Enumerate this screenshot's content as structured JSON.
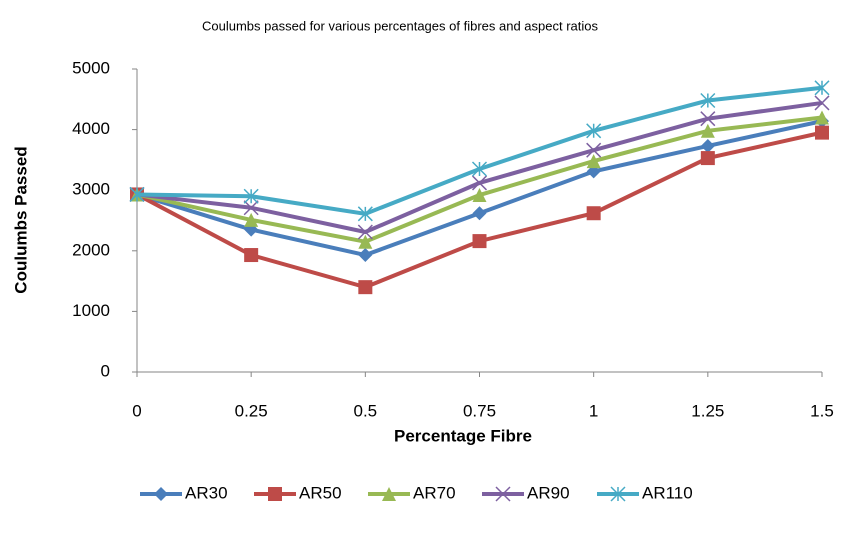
{
  "chart_data": {
    "type": "line",
    "title": "Coulumbs passed for various percentages of fibres and aspect ratios",
    "x_label": "Percentage Fibre",
    "y_label": "Coulumbs Passed",
    "x": [
      0,
      0.25,
      0.5,
      0.75,
      1,
      1.25,
      1.5
    ],
    "xlim": [
      0,
      1.5
    ],
    "xticks": [
      0,
      0.25,
      0.5,
      0.75,
      1,
      1.25,
      1.5
    ],
    "ylim": [
      0,
      5000
    ],
    "yticks": [
      0,
      1000,
      2000,
      3000,
      4000,
      5000
    ],
    "grid": false,
    "legend": "bottom",
    "series": [
      {
        "name": "AR30",
        "color": "#4a7ebb",
        "marker": "diamond",
        "values": [
          2930,
          2350,
          1930,
          2620,
          3310,
          3730,
          4140
        ]
      },
      {
        "name": "AR50",
        "color": "#be4b48",
        "marker": "square",
        "values": [
          2930,
          1930,
          1400,
          2160,
          2620,
          3530,
          3950
        ]
      },
      {
        "name": "AR70",
        "color": "#98b954",
        "marker": "triangle",
        "values": [
          2930,
          2510,
          2150,
          2920,
          3480,
          3980,
          4200
        ]
      },
      {
        "name": "AR90",
        "color": "#7d60a0",
        "marker": "x",
        "values": [
          2930,
          2710,
          2310,
          3120,
          3660,
          4180,
          4440
        ]
      },
      {
        "name": "AR110",
        "color": "#46aac5",
        "marker": "star",
        "values": [
          2930,
          2900,
          2610,
          3350,
          3980,
          4480,
          4690
        ]
      }
    ]
  }
}
